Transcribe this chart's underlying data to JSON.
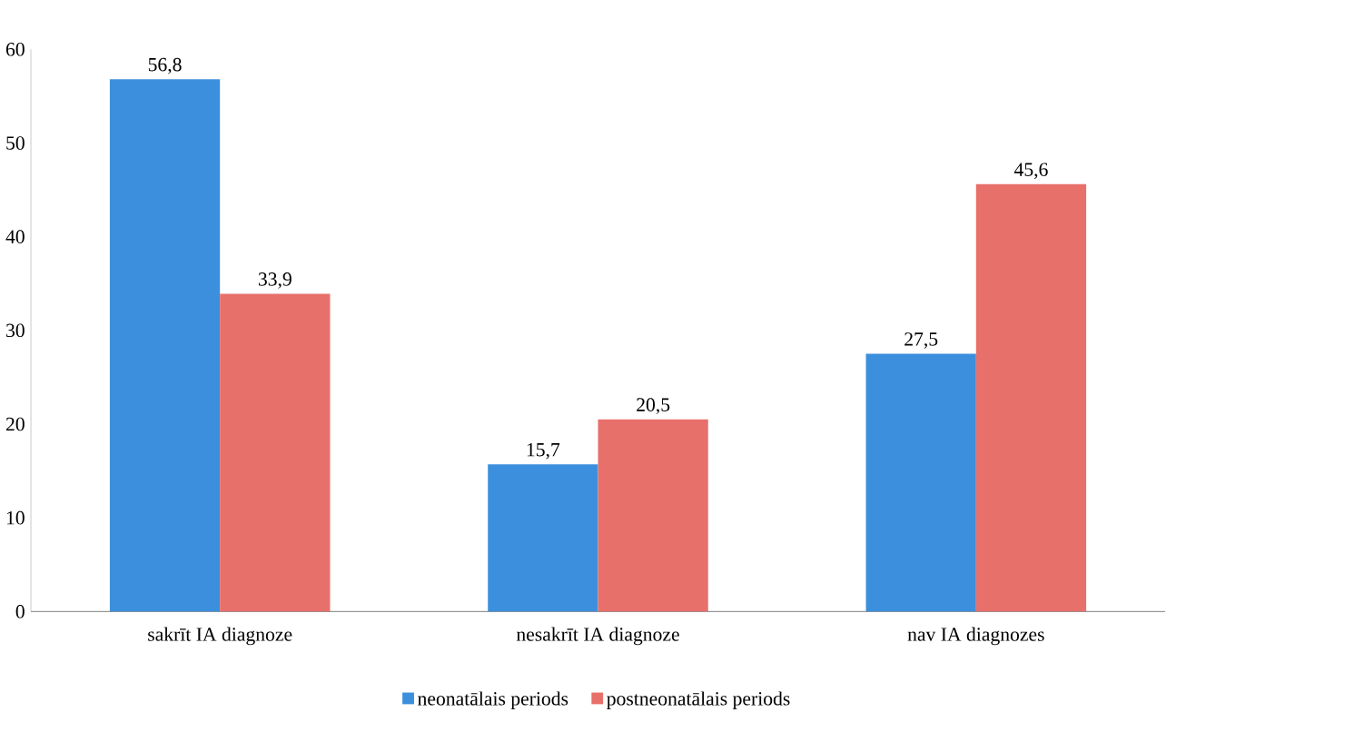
{
  "chart_data": {
    "type": "bar",
    "categories": [
      "sakrīt IA diagnoze",
      "nesakrīt IA diagnoze",
      "nav IA diagnozes"
    ],
    "series": [
      {
        "name": "neonatālais periods",
        "color": "#3c8fdd",
        "values": [
          56.8,
          15.7,
          27.5
        ],
        "value_labels": [
          "56,8",
          "15,7",
          "27,5"
        ]
      },
      {
        "name": "postneonatālais periods",
        "color": "#e8706a",
        "values": [
          33.9,
          20.5,
          45.6
        ],
        "value_labels": [
          "33,9",
          "20,5",
          "45,6"
        ]
      }
    ],
    "ylim": [
      0,
      60
    ],
    "yticks": [
      0,
      10,
      20,
      30,
      40,
      50,
      60
    ],
    "legend": "bottom"
  }
}
